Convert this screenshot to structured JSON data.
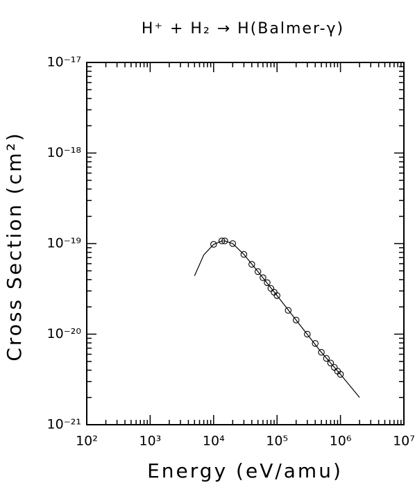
{
  "chart_data": {
    "type": "scatter",
    "title": "H⁺ + H₂ → H(Balmer-γ)",
    "x_label": "Energy (eV/amu)",
    "y_label": "Cross Section (cm²)",
    "xscale": "log",
    "yscale": "log",
    "xlim": [
      100,
      10000000
    ],
    "ylim": [
      1e-21,
      1e-17
    ],
    "xticks": [
      {
        "value": 100,
        "label": "10²"
      },
      {
        "value": 1000,
        "label": "10³"
      },
      {
        "value": 10000,
        "label": "10⁴"
      },
      {
        "value": 100000,
        "label": "10⁵"
      },
      {
        "value": 1000000,
        "label": "10⁶"
      },
      {
        "value": 10000000,
        "label": "10⁷"
      }
    ],
    "yticks": [
      {
        "value": 1e-21,
        "label": "10⁻²¹"
      },
      {
        "value": 1e-20,
        "label": "10⁻²⁰"
      },
      {
        "value": 1e-19,
        "label": "10⁻¹⁹"
      },
      {
        "value": 1e-18,
        "label": "10⁻¹⁸"
      },
      {
        "value": 1e-17,
        "label": "10⁻¹⁷"
      }
    ],
    "color": "#000000",
    "series": [
      {
        "style": "line",
        "x": [
          5000,
          7000,
          10000,
          13500,
          15000,
          20000,
          30000,
          50000,
          100000,
          200000,
          500000,
          1000000,
          2000000
        ],
        "values": [
          4.4e-20,
          7.5e-20,
          9.8e-20,
          1.07e-19,
          1.07e-19,
          1e-19,
          7.6e-20,
          4.9e-20,
          2.67e-20,
          1.43e-20,
          6.3e-21,
          3.6e-21,
          2e-21
        ]
      },
      {
        "style": "markers",
        "x": [
          10000,
          13500,
          15000,
          20000,
          30000,
          40000,
          50000,
          60000,
          70000,
          80000,
          90000,
          100000,
          150000,
          200000,
          300000,
          400000,
          500000,
          600000,
          700000,
          800000,
          900000,
          1000000
        ],
        "values": [
          9.8e-20,
          1.07e-19,
          1.07e-19,
          1e-19,
          7.6e-20,
          5.9e-20,
          4.9e-20,
          4.2e-20,
          3.7e-20,
          3.2e-20,
          2.9e-20,
          2.67e-20,
          1.83e-20,
          1.43e-20,
          1e-20,
          7.9e-21,
          6.3e-21,
          5.4e-21,
          4.8e-21,
          4.3e-21,
          3.9e-21,
          3.6e-21
        ]
      }
    ]
  }
}
